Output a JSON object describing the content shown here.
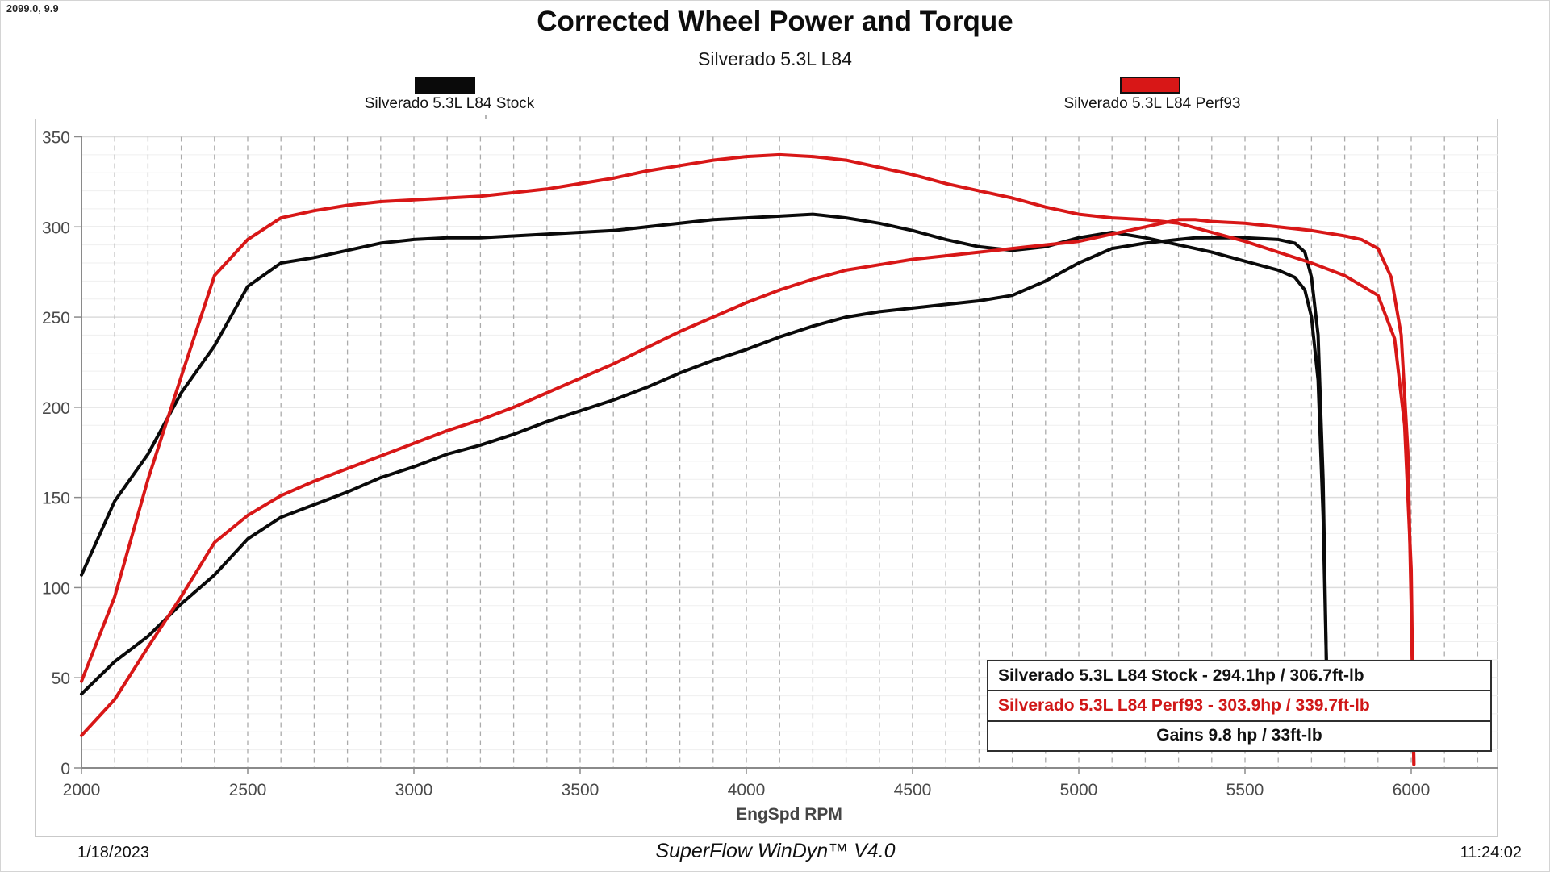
{
  "cursor_readout": "2099.0, 9.9",
  "header": {
    "title": "Corrected Wheel Power and Torque",
    "subtitle": "Silverado 5.3L L84"
  },
  "legend": [
    {
      "label": "Silverado 5.3L L84 Stock",
      "color": "#0a0a0a"
    },
    {
      "label": "Silverado 5.3L L84 Perf93",
      "color": "#d81717"
    }
  ],
  "results_box": {
    "rows": [
      {
        "text": "Silverado 5.3L L84 Stock - 294.1hp / 306.7ft-lb",
        "color": "#111111",
        "align": "left"
      },
      {
        "text": "Silverado 5.3L L84 Perf93 - 303.9hp / 339.7ft-lb",
        "color": "#d01717",
        "align": "left"
      },
      {
        "text": "Gains 9.8 hp / 33ft-lb",
        "color": "#111111",
        "align": "center"
      }
    ]
  },
  "footer": {
    "date": "1/18/2023",
    "software": "SuperFlow WinDyn™ V4.0",
    "time": "11:24:02"
  },
  "chart_data": {
    "type": "line",
    "title": "Corrected Wheel Power and Torque",
    "subtitle": "Silverado 5.3L L84",
    "xlabel": "EngSpd RPM",
    "ylabel": "",
    "xlim": [
      2000,
      6260
    ],
    "ylim": [
      0,
      350
    ],
    "x_ticks": [
      2000,
      2500,
      3000,
      3500,
      4000,
      4500,
      5000,
      5500,
      6000
    ],
    "y_ticks": [
      0,
      50,
      100,
      150,
      200,
      250,
      300,
      350
    ],
    "x_minor_step": 100,
    "y_minor_step": 10,
    "grid": "solid light horizontal lines every 10 (bolder every 50), dashed gray vertical lines every 100 RPM",
    "legend_position": "top",
    "series": [
      {
        "name": "Silverado 5.3L L84 Stock Torque",
        "unit": "ft-lb",
        "color": "#0a0a0a",
        "peak": "306.7 ft-lb",
        "data": [
          [
            2000,
            107
          ],
          [
            2100,
            148
          ],
          [
            2200,
            174
          ],
          [
            2300,
            208
          ],
          [
            2400,
            234
          ],
          [
            2500,
            267
          ],
          [
            2600,
            280
          ],
          [
            2700,
            283
          ],
          [
            2800,
            287
          ],
          [
            2900,
            291
          ],
          [
            3000,
            293
          ],
          [
            3100,
            294
          ],
          [
            3200,
            294
          ],
          [
            3300,
            295
          ],
          [
            3400,
            296
          ],
          [
            3500,
            297
          ],
          [
            3600,
            298
          ],
          [
            3700,
            300
          ],
          [
            3800,
            302
          ],
          [
            3900,
            304
          ],
          [
            4000,
            305
          ],
          [
            4100,
            306
          ],
          [
            4200,
            307
          ],
          [
            4300,
            305
          ],
          [
            4400,
            302
          ],
          [
            4500,
            298
          ],
          [
            4600,
            293
          ],
          [
            4700,
            289
          ],
          [
            4800,
            287
          ],
          [
            4900,
            289
          ],
          [
            5000,
            294
          ],
          [
            5100,
            297
          ],
          [
            5200,
            294
          ],
          [
            5300,
            290
          ],
          [
            5400,
            286
          ],
          [
            5500,
            281
          ],
          [
            5600,
            276
          ],
          [
            5650,
            272
          ],
          [
            5680,
            265
          ],
          [
            5700,
            250
          ],
          [
            5720,
            215
          ],
          [
            5735,
            140
          ],
          [
            5745,
            58
          ]
        ]
      },
      {
        "name": "Silverado 5.3L L84 Stock Power",
        "unit": "hp",
        "color": "#0a0a0a",
        "peak": "294.1 hp",
        "data": [
          [
            2000,
            41
          ],
          [
            2100,
            59
          ],
          [
            2200,
            73
          ],
          [
            2300,
            91
          ],
          [
            2400,
            107
          ],
          [
            2500,
            127
          ],
          [
            2600,
            139
          ],
          [
            2700,
            146
          ],
          [
            2800,
            153
          ],
          [
            2900,
            161
          ],
          [
            3000,
            167
          ],
          [
            3100,
            174
          ],
          [
            3200,
            179
          ],
          [
            3300,
            185
          ],
          [
            3400,
            192
          ],
          [
            3500,
            198
          ],
          [
            3600,
            204
          ],
          [
            3700,
            211
          ],
          [
            3800,
            219
          ],
          [
            3900,
            226
          ],
          [
            4000,
            232
          ],
          [
            4100,
            239
          ],
          [
            4200,
            245
          ],
          [
            4300,
            250
          ],
          [
            4400,
            253
          ],
          [
            4500,
            255
          ],
          [
            4600,
            257
          ],
          [
            4700,
            259
          ],
          [
            4800,
            262
          ],
          [
            4900,
            270
          ],
          [
            5000,
            280
          ],
          [
            5100,
            288
          ],
          [
            5200,
            291
          ],
          [
            5300,
            293
          ],
          [
            5350,
            294
          ],
          [
            5400,
            294
          ],
          [
            5500,
            294
          ],
          [
            5600,
            293
          ],
          [
            5650,
            291
          ],
          [
            5680,
            286
          ],
          [
            5700,
            272
          ],
          [
            5720,
            240
          ],
          [
            5735,
            160
          ],
          [
            5745,
            58
          ]
        ]
      },
      {
        "name": "Silverado 5.3L L84 Perf93 Torque",
        "unit": "ft-lb",
        "color": "#d81717",
        "peak": "339.7 ft-lb",
        "data": [
          [
            2000,
            48
          ],
          [
            2100,
            95
          ],
          [
            2200,
            160
          ],
          [
            2300,
            217
          ],
          [
            2400,
            273
          ],
          [
            2500,
            293
          ],
          [
            2600,
            305
          ],
          [
            2700,
            309
          ],
          [
            2800,
            312
          ],
          [
            2900,
            314
          ],
          [
            3000,
            315
          ],
          [
            3100,
            316
          ],
          [
            3200,
            317
          ],
          [
            3300,
            319
          ],
          [
            3400,
            321
          ],
          [
            3500,
            324
          ],
          [
            3600,
            327
          ],
          [
            3700,
            331
          ],
          [
            3800,
            334
          ],
          [
            3900,
            337
          ],
          [
            4000,
            339
          ],
          [
            4100,
            340
          ],
          [
            4200,
            339
          ],
          [
            4300,
            337
          ],
          [
            4400,
            333
          ],
          [
            4500,
            329
          ],
          [
            4600,
            324
          ],
          [
            4700,
            320
          ],
          [
            4800,
            316
          ],
          [
            4900,
            311
          ],
          [
            5000,
            307
          ],
          [
            5100,
            305
          ],
          [
            5200,
            304
          ],
          [
            5300,
            302
          ],
          [
            5400,
            297
          ],
          [
            5500,
            292
          ],
          [
            5600,
            286
          ],
          [
            5700,
            280
          ],
          [
            5800,
            273
          ],
          [
            5900,
            262
          ],
          [
            5950,
            238
          ],
          [
            5980,
            190
          ],
          [
            6000,
            110
          ],
          [
            6005,
            40
          ],
          [
            6008,
            2
          ]
        ]
      },
      {
        "name": "Silverado 5.3L L84 Perf93 Power",
        "unit": "hp",
        "color": "#d81717",
        "peak": "303.9 hp",
        "data": [
          [
            2000,
            18
          ],
          [
            2100,
            38
          ],
          [
            2200,
            67
          ],
          [
            2300,
            95
          ],
          [
            2400,
            125
          ],
          [
            2500,
            140
          ],
          [
            2600,
            151
          ],
          [
            2700,
            159
          ],
          [
            2800,
            166
          ],
          [
            2900,
            173
          ],
          [
            3000,
            180
          ],
          [
            3100,
            187
          ],
          [
            3200,
            193
          ],
          [
            3300,
            200
          ],
          [
            3400,
            208
          ],
          [
            3500,
            216
          ],
          [
            3600,
            224
          ],
          [
            3700,
            233
          ],
          [
            3800,
            242
          ],
          [
            3900,
            250
          ],
          [
            4000,
            258
          ],
          [
            4100,
            265
          ],
          [
            4200,
            271
          ],
          [
            4300,
            276
          ],
          [
            4400,
            279
          ],
          [
            4500,
            282
          ],
          [
            4600,
            284
          ],
          [
            4700,
            286
          ],
          [
            4800,
            288
          ],
          [
            4900,
            290
          ],
          [
            5000,
            292
          ],
          [
            5100,
            296
          ],
          [
            5200,
            300
          ],
          [
            5300,
            304
          ],
          [
            5350,
            304
          ],
          [
            5400,
            303
          ],
          [
            5500,
            302
          ],
          [
            5600,
            300
          ],
          [
            5700,
            298
          ],
          [
            5800,
            295
          ],
          [
            5850,
            293
          ],
          [
            5900,
            288
          ],
          [
            5940,
            272
          ],
          [
            5970,
            240
          ],
          [
            5990,
            175
          ],
          [
            6000,
            90
          ],
          [
            6005,
            35
          ],
          [
            6008,
            2
          ]
        ]
      }
    ]
  }
}
